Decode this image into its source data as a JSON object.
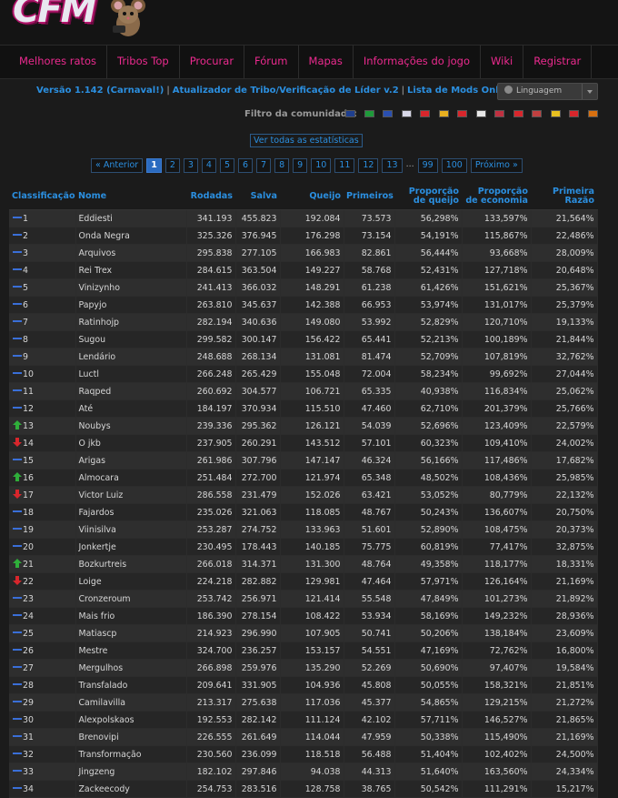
{
  "logo": {
    "text": "CFM"
  },
  "nav": [
    "Melhores ratos",
    "Tribos Top",
    "Procurar",
    "Fórum",
    "Mapas",
    "Informações do jogo",
    "Wiki",
    "Registrar"
  ],
  "version_bar": {
    "version": "Versão 1.142 (Carnaval!)",
    "tribe_link": "Atualizador de Tribo/Verificação de Líder v.2",
    "mods_link": "Lista de Mods Online"
  },
  "language_select": {
    "label": "Linguagem"
  },
  "filter": {
    "label": "Filtro da comunidade:",
    "flags": [
      {
        "name": "gb-flag-icon",
        "color": "#1f3f8f"
      },
      {
        "name": "br-flag-icon",
        "color": "#1e9a3a"
      },
      {
        "name": "fr-flag-icon",
        "color": "#2a4fb0"
      },
      {
        "name": "ru-flag-icon",
        "color": "#d8d8e8"
      },
      {
        "name": "tr-flag-icon",
        "color": "#d8262c"
      },
      {
        "name": "es-flag-icon",
        "color": "#e8b020"
      },
      {
        "name": "cn-flag-icon",
        "color": "#d8262c"
      },
      {
        "name": "pl-flag-icon",
        "color": "#e8e8e8"
      },
      {
        "name": "nl-flag-icon",
        "color": "#c03040"
      },
      {
        "name": "id-flag-icon",
        "color": "#d8262c"
      },
      {
        "name": "hu-flag-icon",
        "color": "#c04040"
      },
      {
        "name": "ro-flag-icon",
        "color": "#e8c020"
      },
      {
        "name": "sg-flag-icon",
        "color": "#d8262c"
      },
      {
        "name": "de-flag-icon",
        "color": "#d87010"
      }
    ]
  },
  "all_stats_label": "Ver todas as estatísticas",
  "pagination": {
    "prev": "« Anterior",
    "pages": [
      "1",
      "2",
      "3",
      "4",
      "5",
      "6",
      "7",
      "8",
      "9",
      "10",
      "11",
      "12",
      "13"
    ],
    "current": "1",
    "ellipsis": "...",
    "tail_pages": [
      "99",
      "100"
    ],
    "next": "Próximo »"
  },
  "table": {
    "headers": [
      "Classificação",
      "Nome",
      "Rodadas",
      "Salva",
      "Queijo",
      "Primeiros",
      "Proporção de queijo",
      "Proporção de economia",
      "Primeira Razão"
    ],
    "rows": [
      {
        "rank": "1",
        "trend": "same",
        "name": "Eddiesti",
        "rounds": "341.193",
        "saves": "455.823",
        "cheese": "192.084",
        "firsts": "73.573",
        "cheese_ratio": "56,298%",
        "save_ratio": "133,597%",
        "first_ratio": "21,564%"
      },
      {
        "rank": "2",
        "trend": "same",
        "name": "Onda Negra",
        "rounds": "325.326",
        "saves": "376.945",
        "cheese": "176.298",
        "firsts": "73.154",
        "cheese_ratio": "54,191%",
        "save_ratio": "115,867%",
        "first_ratio": "22,486%"
      },
      {
        "rank": "3",
        "trend": "same",
        "name": "Arquivos",
        "rounds": "295.838",
        "saves": "277.105",
        "cheese": "166.983",
        "firsts": "82.861",
        "cheese_ratio": "56,444%",
        "save_ratio": "93,668%",
        "first_ratio": "28,009%"
      },
      {
        "rank": "4",
        "trend": "same",
        "name": "Rei Trex",
        "rounds": "284.615",
        "saves": "363.504",
        "cheese": "149.227",
        "firsts": "58.768",
        "cheese_ratio": "52,431%",
        "save_ratio": "127,718%",
        "first_ratio": "20,648%"
      },
      {
        "rank": "5",
        "trend": "same",
        "name": "Vinizynho",
        "rounds": "241.413",
        "saves": "366.032",
        "cheese": "148.291",
        "firsts": "61.238",
        "cheese_ratio": "61,426%",
        "save_ratio": "151,621%",
        "first_ratio": "25,367%"
      },
      {
        "rank": "6",
        "trend": "same",
        "name": "Papyjo",
        "rounds": "263.810",
        "saves": "345.637",
        "cheese": "142.388",
        "firsts": "66.953",
        "cheese_ratio": "53,974%",
        "save_ratio": "131,017%",
        "first_ratio": "25,379%"
      },
      {
        "rank": "7",
        "trend": "same",
        "name": "Ratinhojp",
        "rounds": "282.194",
        "saves": "340.636",
        "cheese": "149.080",
        "firsts": "53.992",
        "cheese_ratio": "52,829%",
        "save_ratio": "120,710%",
        "first_ratio": "19,133%"
      },
      {
        "rank": "8",
        "trend": "same",
        "name": "Sugou",
        "rounds": "299.582",
        "saves": "300.147",
        "cheese": "156.422",
        "firsts": "65.441",
        "cheese_ratio": "52,213%",
        "save_ratio": "100,189%",
        "first_ratio": "21,844%"
      },
      {
        "rank": "9",
        "trend": "same",
        "name": "Lendário",
        "rounds": "248.688",
        "saves": "268.134",
        "cheese": "131.081",
        "firsts": "81.474",
        "cheese_ratio": "52,709%",
        "save_ratio": "107,819%",
        "first_ratio": "32,762%"
      },
      {
        "rank": "10",
        "trend": "same",
        "name": "Luctl",
        "rounds": "266.248",
        "saves": "265.429",
        "cheese": "155.048",
        "firsts": "72.004",
        "cheese_ratio": "58,234%",
        "save_ratio": "99,692%",
        "first_ratio": "27,044%"
      },
      {
        "rank": "11",
        "trend": "same",
        "name": "Raqped",
        "rounds": "260.692",
        "saves": "304.577",
        "cheese": "106.721",
        "firsts": "65.335",
        "cheese_ratio": "40,938%",
        "save_ratio": "116,834%",
        "first_ratio": "25,062%"
      },
      {
        "rank": "12",
        "trend": "same",
        "name": "Até",
        "rounds": "184.197",
        "saves": "370.934",
        "cheese": "115.510",
        "firsts": "47.460",
        "cheese_ratio": "62,710%",
        "save_ratio": "201,379%",
        "first_ratio": "25,766%"
      },
      {
        "rank": "13",
        "trend": "up",
        "name": "Noubys",
        "rounds": "239.336",
        "saves": "295.362",
        "cheese": "126.121",
        "firsts": "54.039",
        "cheese_ratio": "52,696%",
        "save_ratio": "123,409%",
        "first_ratio": "22,579%"
      },
      {
        "rank": "14",
        "trend": "down",
        "name": "O jkb",
        "rounds": "237.905",
        "saves": "260.291",
        "cheese": "143.512",
        "firsts": "57.101",
        "cheese_ratio": "60,323%",
        "save_ratio": "109,410%",
        "first_ratio": "24,002%"
      },
      {
        "rank": "15",
        "trend": "same",
        "name": "Arigas",
        "rounds": "261.986",
        "saves": "307.796",
        "cheese": "147.147",
        "firsts": "46.324",
        "cheese_ratio": "56,166%",
        "save_ratio": "117,486%",
        "first_ratio": "17,682%"
      },
      {
        "rank": "16",
        "trend": "up",
        "name": "Almocara",
        "rounds": "251.484",
        "saves": "272.700",
        "cheese": "121.974",
        "firsts": "65.348",
        "cheese_ratio": "48,502%",
        "save_ratio": "108,436%",
        "first_ratio": "25,985%"
      },
      {
        "rank": "17",
        "trend": "down",
        "name": "Victor Luiz",
        "rounds": "286.558",
        "saves": "231.479",
        "cheese": "152.026",
        "firsts": "63.421",
        "cheese_ratio": "53,052%",
        "save_ratio": "80,779%",
        "first_ratio": "22,132%"
      },
      {
        "rank": "18",
        "trend": "same",
        "name": "Fajardos",
        "rounds": "235.026",
        "saves": "321.063",
        "cheese": "118.085",
        "firsts": "48.767",
        "cheese_ratio": "50,243%",
        "save_ratio": "136,607%",
        "first_ratio": "20,750%"
      },
      {
        "rank": "19",
        "trend": "same",
        "name": "Viinisilva",
        "rounds": "253.287",
        "saves": "274.752",
        "cheese": "133.963",
        "firsts": "51.601",
        "cheese_ratio": "52,890%",
        "save_ratio": "108,475%",
        "first_ratio": "20,373%"
      },
      {
        "rank": "20",
        "trend": "same",
        "name": "Jonkertje",
        "rounds": "230.495",
        "saves": "178.443",
        "cheese": "140.185",
        "firsts": "75.775",
        "cheese_ratio": "60,819%",
        "save_ratio": "77,417%",
        "first_ratio": "32,875%"
      },
      {
        "rank": "21",
        "trend": "up",
        "name": "Bozkurtreis",
        "rounds": "266.018",
        "saves": "314.371",
        "cheese": "131.300",
        "firsts": "48.764",
        "cheese_ratio": "49,358%",
        "save_ratio": "118,177%",
        "first_ratio": "18,331%"
      },
      {
        "rank": "22",
        "trend": "down",
        "name": "Loige",
        "rounds": "224.218",
        "saves": "282.882",
        "cheese": "129.981",
        "firsts": "47.464",
        "cheese_ratio": "57,971%",
        "save_ratio": "126,164%",
        "first_ratio": "21,169%"
      },
      {
        "rank": "23",
        "trend": "same",
        "name": "Cronzeroum",
        "rounds": "253.742",
        "saves": "256.971",
        "cheese": "121.414",
        "firsts": "55.548",
        "cheese_ratio": "47,849%",
        "save_ratio": "101,273%",
        "first_ratio": "21,892%"
      },
      {
        "rank": "24",
        "trend": "same",
        "name": "Mais frio",
        "rounds": "186.390",
        "saves": "278.154",
        "cheese": "108.422",
        "firsts": "53.934",
        "cheese_ratio": "58,169%",
        "save_ratio": "149,232%",
        "first_ratio": "28,936%"
      },
      {
        "rank": "25",
        "trend": "same",
        "name": "Matiascp",
        "rounds": "214.923",
        "saves": "296.990",
        "cheese": "107.905",
        "firsts": "50.741",
        "cheese_ratio": "50,206%",
        "save_ratio": "138,184%",
        "first_ratio": "23,609%"
      },
      {
        "rank": "26",
        "trend": "same",
        "name": "Mestre",
        "rounds": "324.700",
        "saves": "236.257",
        "cheese": "153.157",
        "firsts": "54.551",
        "cheese_ratio": "47,169%",
        "save_ratio": "72,762%",
        "first_ratio": "16,800%"
      },
      {
        "rank": "27",
        "trend": "same",
        "name": "Mergulhos",
        "rounds": "266.898",
        "saves": "259.976",
        "cheese": "135.290",
        "firsts": "52.269",
        "cheese_ratio": "50,690%",
        "save_ratio": "97,407%",
        "first_ratio": "19,584%"
      },
      {
        "rank": "28",
        "trend": "same",
        "name": "Transfalado",
        "rounds": "209.641",
        "saves": "331.905",
        "cheese": "104.936",
        "firsts": "45.808",
        "cheese_ratio": "50,055%",
        "save_ratio": "158,321%",
        "first_ratio": "21,851%"
      },
      {
        "rank": "29",
        "trend": "same",
        "name": "Camilavilla",
        "rounds": "213.317",
        "saves": "275.638",
        "cheese": "117.036",
        "firsts": "45.377",
        "cheese_ratio": "54,865%",
        "save_ratio": "129,215%",
        "first_ratio": "21,272%"
      },
      {
        "rank": "30",
        "trend": "same",
        "name": "Alexpolskaos",
        "rounds": "192.553",
        "saves": "282.142",
        "cheese": "111.124",
        "firsts": "42.102",
        "cheese_ratio": "57,711%",
        "save_ratio": "146,527%",
        "first_ratio": "21,865%"
      },
      {
        "rank": "31",
        "trend": "same",
        "name": "Brenovipi",
        "rounds": "226.555",
        "saves": "261.649",
        "cheese": "114.044",
        "firsts": "47.959",
        "cheese_ratio": "50,338%",
        "save_ratio": "115,490%",
        "first_ratio": "21,169%"
      },
      {
        "rank": "32",
        "trend": "same",
        "name": "Transformação",
        "rounds": "230.560",
        "saves": "236.099",
        "cheese": "118.518",
        "firsts": "56.488",
        "cheese_ratio": "51,404%",
        "save_ratio": "102,402%",
        "first_ratio": "24,500%"
      },
      {
        "rank": "33",
        "trend": "same",
        "name": "Jingzeng",
        "rounds": "182.102",
        "saves": "297.846",
        "cheese": "94.038",
        "firsts": "44.313",
        "cheese_ratio": "51,640%",
        "save_ratio": "163,560%",
        "first_ratio": "24,334%"
      },
      {
        "rank": "34",
        "trend": "same",
        "name": "Zackeecody",
        "rounds": "254.753",
        "saves": "283.516",
        "cheese": "128.758",
        "firsts": "38.765",
        "cheese_ratio": "50,542%",
        "save_ratio": "111,291%",
        "first_ratio": "15,217%"
      }
    ]
  }
}
